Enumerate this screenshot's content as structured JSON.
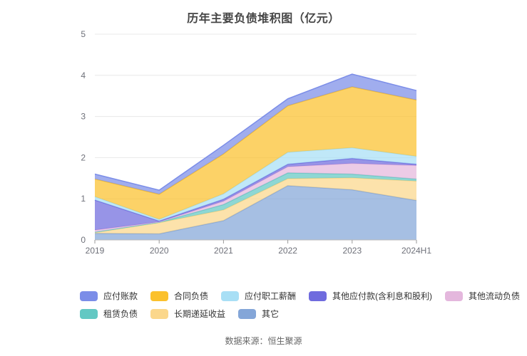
{
  "title": "历年主要负债堆积图（亿元）",
  "footer": "数据来源：恒生聚源",
  "chart_data": {
    "type": "area",
    "stacked": true,
    "title": "历年主要负债堆积图（亿元）",
    "x": [
      "2019",
      "2020",
      "2021",
      "2022",
      "2023",
      "2024H1"
    ],
    "xlabel": "",
    "ylabel": "",
    "ylim": [
      0,
      5
    ],
    "y_ticks": [
      0,
      1,
      2,
      3,
      4,
      5
    ],
    "grid": "horizontal",
    "legend_position": "bottom",
    "area_opacity": 0.72,
    "series": [
      {
        "name": "应付账款",
        "color": "#7B8DE8",
        "values": [
          0.12,
          0.1,
          0.21,
          0.17,
          0.31,
          0.23
        ]
      },
      {
        "name": "合同负债",
        "color": "#FBC12D",
        "values": [
          0.43,
          0.61,
          0.97,
          1.13,
          1.48,
          1.37
        ]
      },
      {
        "name": "应付职工薪酬",
        "color": "#A8DFF5",
        "values": [
          0.08,
          0.04,
          0.13,
          0.29,
          0.26,
          0.19
        ]
      },
      {
        "name": "其他应付款(含利息和股利)",
        "color": "#6F6BDE",
        "values": [
          0.73,
          0.02,
          0.05,
          0.06,
          0.12,
          0.03
        ]
      },
      {
        "name": "其他流动负债",
        "color": "#E4B7DD",
        "values": [
          0.05,
          0.01,
          0.08,
          0.15,
          0.26,
          0.33
        ]
      },
      {
        "name": "租赁负债",
        "color": "#63C8C3",
        "values": [
          0.01,
          0.01,
          0.13,
          0.14,
          0.09,
          0.05
        ]
      },
      {
        "name": "长期递延收益",
        "color": "#FBD78B",
        "values": [
          0.02,
          0.27,
          0.26,
          0.17,
          0.29,
          0.47
        ]
      },
      {
        "name": "其它",
        "color": "#84A6D8",
        "values": [
          0.16,
          0.15,
          0.47,
          1.32,
          1.22,
          0.96
        ]
      }
    ],
    "stack_order_bottom_to_top": [
      "其它",
      "长期递延收益",
      "租赁负债",
      "其他流动负债",
      "其他应付款(含利息和股利)",
      "应付职工薪酬",
      "合同负债",
      "应付账款"
    ],
    "totals": [
      1.6,
      1.21,
      2.3,
      3.43,
      4.03,
      3.63
    ],
    "axis_colors": {
      "label": "#6E7079",
      "grid": "#E8E8E8",
      "axis_line": "#B9B9B9"
    }
  }
}
